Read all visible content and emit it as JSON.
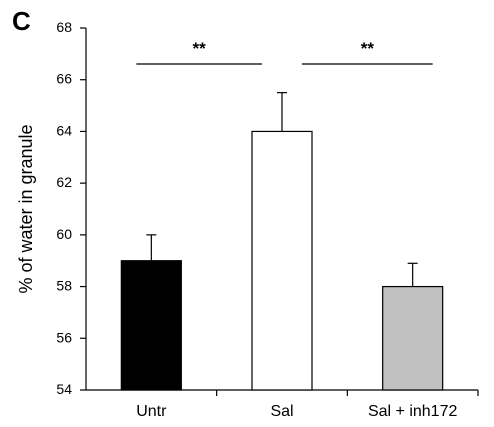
{
  "panel_label": "C",
  "chart_data": {
    "type": "bar",
    "categories": [
      "Untr",
      "Sal",
      "Sal + inh172"
    ],
    "values": [
      59,
      64,
      58
    ],
    "errors": [
      1.0,
      1.5,
      0.9
    ],
    "colors": [
      "#000000",
      "#ffffff",
      "#c0c0c0"
    ],
    "ylabel": "% of water in granule",
    "ylim": [
      54,
      68
    ],
    "yticks": [
      54,
      56,
      58,
      60,
      62,
      64,
      66,
      68
    ],
    "grid": false,
    "significance": [
      {
        "from": 0,
        "to": 1,
        "label": "**"
      },
      {
        "from": 1,
        "to": 2,
        "label": "**"
      }
    ]
  }
}
